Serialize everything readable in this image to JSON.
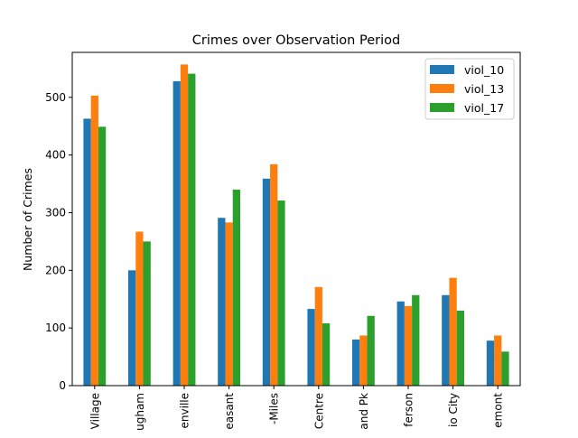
{
  "chart_data": {
    "type": "bar",
    "title": "Crimes over Observation Period",
    "xlabel": "",
    "ylabel": "Number of Crimes",
    "ylim": [
      0,
      578
    ],
    "yticks": [
      0,
      100,
      200,
      300,
      400,
      500
    ],
    "grid": false,
    "legend_position": "top-right",
    "categories": [
      "Village",
      "ugham",
      "enville",
      "easant",
      "-Miles",
      "Centre",
      "and Pk",
      "ferson",
      "io City",
      "emont"
    ],
    "series": [
      {
        "name": "viol_10",
        "color": "#1f77b4",
        "values": [
          463,
          200,
          528,
          291,
          359,
          133,
          80,
          146,
          157,
          78
        ]
      },
      {
        "name": "viol_13",
        "color": "#ff7f0e",
        "values": [
          503,
          267,
          557,
          283,
          384,
          171,
          87,
          138,
          187,
          87
        ]
      },
      {
        "name": "viol_17",
        "color": "#2ca02c",
        "values": [
          449,
          250,
          541,
          340,
          321,
          108,
          121,
          157,
          130,
          59
        ]
      }
    ]
  }
}
